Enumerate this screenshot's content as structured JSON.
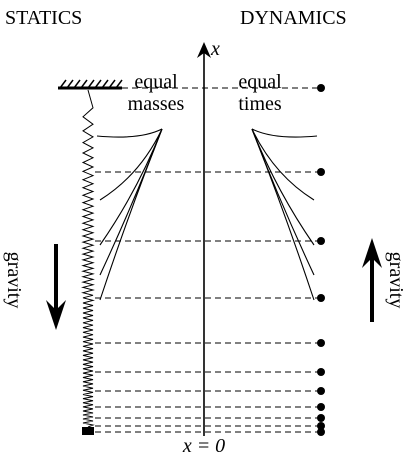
{
  "header": {
    "left": "STATICS",
    "right": "DYNAMICS"
  },
  "axis": {
    "label": "x",
    "origin": "x = 0"
  },
  "statics": {
    "note": [
      "equal",
      "masses"
    ],
    "gravity": "gravity"
  },
  "dynamics": {
    "note": [
      "equal",
      "times"
    ],
    "gravity": "gravity"
  }
}
